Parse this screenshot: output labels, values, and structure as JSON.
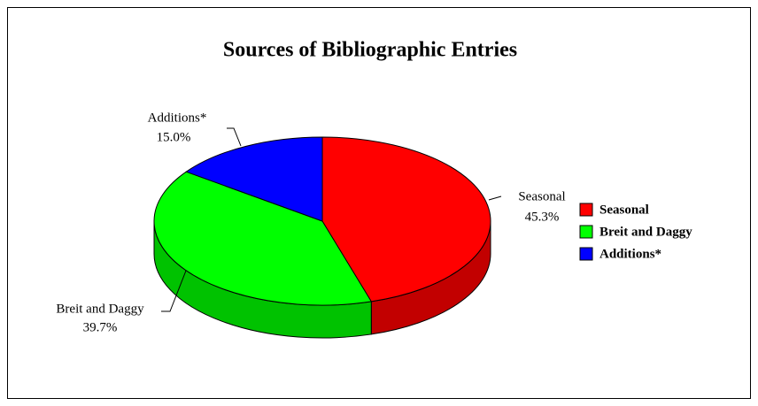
{
  "chart_data": {
    "type": "pie3d",
    "title": "Sources of Bibliographic Entries",
    "categories": [
      "Seasonal",
      "Breit and Daggy",
      "Additions*"
    ],
    "values": [
      45.3,
      39.7,
      15.0
    ],
    "value_labels": [
      "45.3%",
      "39.7%",
      "15.0%"
    ],
    "colors": [
      "#ff0000",
      "#00ff00",
      "#0000ff"
    ]
  }
}
